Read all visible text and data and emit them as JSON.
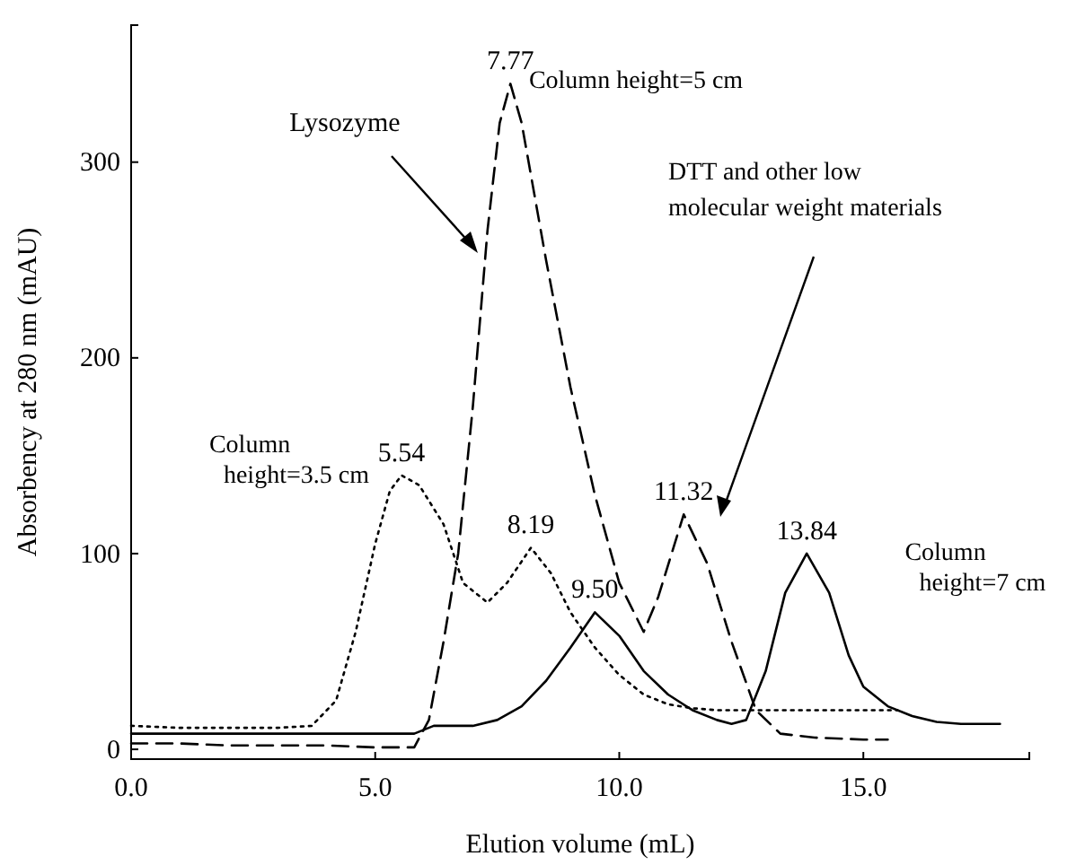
{
  "chart_data": {
    "type": "line",
    "xlabel": "Elution volume (mL)",
    "ylabel": "Absorbency at 280 nm (mAU)",
    "xlim": [
      0,
      18.4
    ],
    "ylim": [
      -5,
      370
    ],
    "xticks": [
      {
        "value": 0,
        "label": "0.0"
      },
      {
        "value": 5,
        "label": "5.0"
      },
      {
        "value": 10,
        "label": "10.0"
      },
      {
        "value": 15,
        "label": "15.0"
      }
    ],
    "yticks": [
      0,
      100,
      200,
      300
    ],
    "grid": false,
    "legend": false,
    "series": [
      {
        "name": "Column height=3.5 cm",
        "color": "#000000",
        "line_style": "dotted",
        "x": [
          0,
          1,
          2,
          3,
          3.7,
          4.2,
          4.6,
          5.0,
          5.3,
          5.54,
          5.9,
          6.4,
          6.8,
          7.3,
          7.7,
          8.19,
          8.6,
          9.0,
          9.5,
          10.0,
          10.5,
          11.0,
          11.5,
          12.0,
          13.0,
          14.0,
          15.0,
          15.7
        ],
        "values": [
          12,
          11,
          11,
          11,
          12,
          25,
          60,
          105,
          132,
          140,
          135,
          115,
          85,
          75,
          85,
          103,
          90,
          70,
          52,
          38,
          28,
          23,
          21,
          20,
          20,
          20,
          20,
          20
        ]
      },
      {
        "name": "Column height=5 cm",
        "color": "#000000",
        "line_style": "dashed",
        "x": [
          0,
          1,
          2,
          3,
          4,
          5,
          5.8,
          6.1,
          6.4,
          6.7,
          7.0,
          7.3,
          7.55,
          7.77,
          8.0,
          8.5,
          9.0,
          9.5,
          10.0,
          10.5,
          10.8,
          11.32,
          11.8,
          12.3,
          12.8,
          13.3,
          14.0,
          15.0,
          15.5
        ],
        "values": [
          3,
          3,
          2,
          2,
          2,
          1,
          1,
          15,
          55,
          100,
          175,
          265,
          320,
          340,
          320,
          250,
          185,
          130,
          85,
          60,
          78,
          120,
          95,
          55,
          20,
          8,
          6,
          5,
          5
        ]
      },
      {
        "name": "Column height=7 cm",
        "color": "#000000",
        "line_style": "solid",
        "x": [
          0,
          2,
          4,
          5.8,
          6.2,
          7.0,
          7.5,
          8.0,
          8.5,
          9.0,
          9.5,
          10.0,
          10.5,
          11.0,
          11.5,
          12.0,
          12.3,
          12.6,
          13.0,
          13.4,
          13.84,
          14.3,
          14.7,
          15.0,
          15.5,
          16.0,
          16.5,
          17.0,
          17.8
        ],
        "values": [
          8,
          8,
          8,
          8,
          12,
          12,
          15,
          22,
          35,
          52,
          70,
          58,
          40,
          28,
          20,
          15,
          13,
          15,
          40,
          80,
          100,
          80,
          48,
          32,
          22,
          17,
          14,
          13,
          13
        ]
      }
    ],
    "annotations": [
      "Lysozyme",
      "DTT and other low molecular weight materials",
      {
        "text": "5.54",
        "x": 5.54,
        "y": 140
      },
      {
        "text": "7.77",
        "x": 7.77,
        "y": 340
      },
      {
        "text": "8.19",
        "x": 8.19,
        "y": 103
      },
      {
        "text": "9.50",
        "x": 9.5,
        "y": 70
      },
      {
        "text": "11.32",
        "x": 11.32,
        "y": 120
      },
      {
        "text": "13.84",
        "x": 13.84,
        "y": 100
      }
    ]
  }
}
